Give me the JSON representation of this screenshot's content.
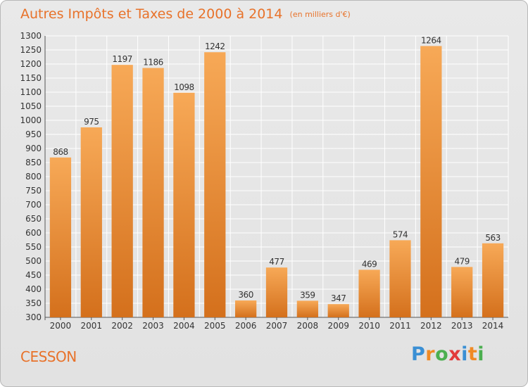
{
  "header": {
    "title": "Autres Impôts et Taxes de 2000 à 2014",
    "unit": "(en milliers d'€)"
  },
  "footer": {
    "city": "CESSON",
    "logo_letters": [
      "P",
      "r",
      "o",
      "x",
      "i",
      "t",
      "i"
    ],
    "logo_colors": [
      "#3a8fd4",
      "#f08a24",
      "#4caf50",
      "#e23b3b",
      "#3a8fd4",
      "#f08a24",
      "#4caf50"
    ]
  },
  "colors": {
    "bar_light": "#f7a957",
    "bar_dark": "#d4701c",
    "title": "#e8722a",
    "grid": "#ffffff"
  },
  "chart_data": {
    "type": "bar",
    "title": "Autres Impôts et Taxes de 2000 à 2014",
    "subtitle": "(en milliers d'€)",
    "categories": [
      "2000",
      "2001",
      "2002",
      "2003",
      "2004",
      "2005",
      "2006",
      "2007",
      "2008",
      "2009",
      "2010",
      "2011",
      "2012",
      "2013",
      "2014"
    ],
    "values": [
      868,
      975,
      1197,
      1186,
      1098,
      1242,
      360,
      477,
      359,
      347,
      469,
      574,
      1264,
      479,
      563
    ],
    "ylim": [
      300,
      1300
    ],
    "yticks": [
      300,
      350,
      400,
      450,
      500,
      550,
      600,
      650,
      700,
      750,
      800,
      850,
      900,
      950,
      1000,
      1050,
      1100,
      1150,
      1200,
      1250,
      1300
    ],
    "grid": true,
    "xlabel": "",
    "ylabel": ""
  }
}
